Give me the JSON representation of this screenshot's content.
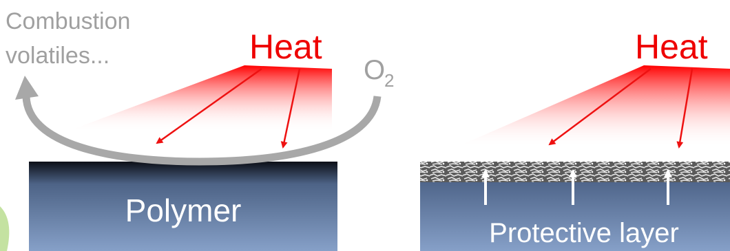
{
  "left": {
    "volatiles": [
      "Combustion",
      "volatiles..."
    ],
    "heat": "Heat",
    "oxygen": {
      "symbol": "O",
      "subscript": "2"
    },
    "material": "Polymer"
  },
  "right": {
    "heat": "Heat",
    "layer": "Protective layer"
  }
}
